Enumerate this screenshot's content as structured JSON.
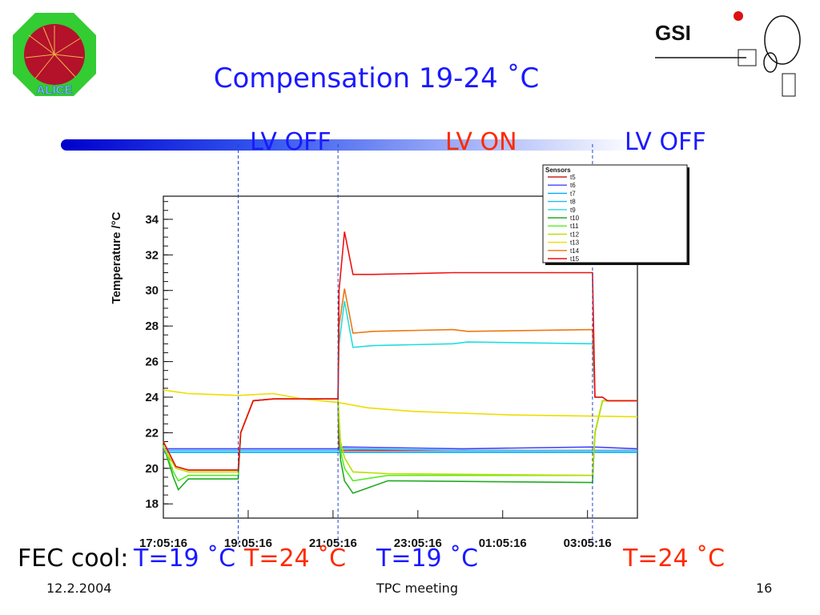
{
  "slide": {
    "title": "Compensation 19-24 ˚C",
    "footer_date": "12.2.2004",
    "footer_center": "TPC meeting",
    "footer_page": "16",
    "logo_left_text": "ALICE",
    "logo_right_text": "GSI"
  },
  "phases": [
    {
      "label": "LV OFF",
      "color": "#1a1aff"
    },
    {
      "label": "LV ON",
      "color": "#ff2a00"
    },
    {
      "label": "LV OFF",
      "color": "#1a1aff"
    }
  ],
  "fec": {
    "label": "FEC cool:",
    "conditions": [
      {
        "text": "T=19 ˚C",
        "color": "#1a1aff"
      },
      {
        "text": "T=24 ˚C",
        "color": "#ff2a00"
      },
      {
        "text": "T=19 ˚C",
        "color": "#1a1aff"
      },
      {
        "text": "T=24 ˚C",
        "color": "#ff2a00"
      }
    ]
  },
  "chart_data": {
    "type": "line",
    "ylabel": "Temperature /°C",
    "xlabel": "",
    "ylim": [
      17.2,
      35.3
    ],
    "yticks": [
      18,
      20,
      22,
      24,
      26,
      28,
      30,
      32,
      34
    ],
    "xlim_hours": [
      0,
      9.5
    ],
    "xtick_labels": [
      "17:05:16",
      "19:05:16",
      "21:05:16",
      "23:05:16",
      "01:05:16",
      "03:05:16"
    ],
    "legend_title": "Sensors",
    "legend_position": "top-right",
    "phase_boundaries_hours": [
      1.5,
      3.5,
      8.6
    ],
    "series": [
      {
        "name": "t5",
        "color": "#cc2222",
        "x": [
          0,
          0.25,
          0.5,
          1.5,
          1.55,
          1.8,
          2.2,
          3.5,
          3.52,
          3.63,
          3.8,
          5,
          6,
          8.6,
          8.65,
          8.8,
          8.9,
          9.5
        ],
        "y": [
          21,
          20.1,
          19.9,
          19.9,
          22,
          23.8,
          23.9,
          23.9,
          21,
          21,
          21,
          21,
          21,
          21,
          21,
          21,
          21,
          21
        ]
      },
      {
        "name": "t6",
        "color": "#4444ff",
        "x": [
          0,
          1.55,
          3.5,
          3.6,
          6,
          8.6,
          9.5
        ],
        "y": [
          21.1,
          21.1,
          21.1,
          21.2,
          21.1,
          21.2,
          21.1
        ]
      },
      {
        "name": "t7",
        "color": "#00aaff",
        "x": [
          0,
          9.5
        ],
        "y": [
          20.9,
          20.9
        ]
      },
      {
        "name": "t8",
        "color": "#22bbee",
        "x": [
          0,
          1.5,
          3.5,
          3.6,
          6,
          8.6,
          9.5
        ],
        "y": [
          21,
          21,
          21,
          21.1,
          21,
          21,
          21
        ]
      },
      {
        "name": "t9",
        "color": "#22dddd",
        "x": [
          0,
          0.25,
          0.5,
          1.5,
          1.55,
          1.8,
          2.2,
          3.5,
          3.52,
          3.63,
          3.8,
          4.2,
          5.8,
          6.1,
          8.6,
          8.65,
          8.8,
          8.9,
          9.5
        ],
        "y": [
          21.5,
          20.1,
          19.9,
          19.9,
          22,
          23.8,
          23.9,
          23.9,
          27,
          29.4,
          26.8,
          26.9,
          27,
          27.1,
          27,
          24,
          24,
          23.8,
          23.8
        ]
      },
      {
        "name": "t10",
        "color": "#22aa22",
        "x": [
          0,
          0.2,
          0.3,
          0.5,
          1.5,
          1.55,
          1.8,
          2.2,
          3.5,
          3.55,
          3.63,
          3.8,
          4.5,
          8.6,
          8.65,
          8.8,
          9.5
        ],
        "y": [
          21.3,
          19.5,
          18.8,
          19.4,
          19.4,
          22,
          23.8,
          23.9,
          23.9,
          20.5,
          19.3,
          18.6,
          19.3,
          19.2,
          22,
          23.8,
          23.8
        ]
      },
      {
        "name": "t11",
        "color": "#55ee22",
        "x": [
          0,
          0.2,
          0.3,
          0.5,
          1.5,
          1.55,
          1.8,
          2.2,
          3.5,
          3.55,
          3.63,
          3.8,
          4.5,
          8.6,
          8.65,
          8.8,
          9.5
        ],
        "y": [
          21.3,
          19.8,
          19.3,
          19.6,
          19.6,
          22,
          23.8,
          23.9,
          23.9,
          21,
          20,
          19.3,
          19.6,
          19.6,
          22,
          23.8,
          23.8
        ]
      },
      {
        "name": "t12",
        "color": "#bbdd00",
        "x": [
          0,
          0.25,
          0.5,
          1.5,
          1.55,
          1.8,
          2.2,
          3.5,
          3.55,
          3.63,
          3.8,
          4.5,
          8.6,
          8.65,
          8.8,
          9.5
        ],
        "y": [
          21.2,
          20,
          19.8,
          19.8,
          22,
          23.8,
          23.9,
          23.9,
          21.5,
          20.6,
          19.8,
          19.7,
          19.6,
          22,
          23.8,
          23.8
        ]
      },
      {
        "name": "t13",
        "color": "#eedd00",
        "x": [
          0,
          0.5,
          1.5,
          2.2,
          2.8,
          3.5,
          4.1,
          5,
          6,
          7,
          9.5
        ],
        "y": [
          24.4,
          24.2,
          24.1,
          24.2,
          23.9,
          23.7,
          23.4,
          23.2,
          23.1,
          23,
          22.9
        ]
      },
      {
        "name": "t14",
        "color": "#ee7711",
        "x": [
          0,
          0.25,
          0.5,
          1.5,
          1.55,
          1.8,
          2.2,
          3.5,
          3.52,
          3.63,
          3.8,
          4.2,
          5.8,
          6.1,
          8.6,
          8.65,
          8.8,
          8.9,
          9.5
        ],
        "y": [
          21.5,
          20.1,
          19.9,
          19.9,
          22,
          23.8,
          23.9,
          23.9,
          28,
          30.1,
          27.6,
          27.7,
          27.8,
          27.7,
          27.8,
          24,
          24,
          23.8,
          23.8
        ]
      },
      {
        "name": "t15",
        "color": "#ee1111",
        "x": [
          0,
          0.25,
          0.5,
          1.5,
          1.55,
          1.8,
          2.2,
          3.5,
          3.52,
          3.63,
          3.8,
          4.2,
          5.8,
          6.1,
          8.6,
          8.65,
          8.8,
          8.9,
          9.5
        ],
        "y": [
          21.5,
          20.1,
          19.9,
          19.9,
          22,
          23.8,
          23.9,
          23.9,
          30,
          33.3,
          30.9,
          30.9,
          31,
          31,
          31,
          24,
          24,
          23.8,
          23.8
        ]
      }
    ]
  }
}
